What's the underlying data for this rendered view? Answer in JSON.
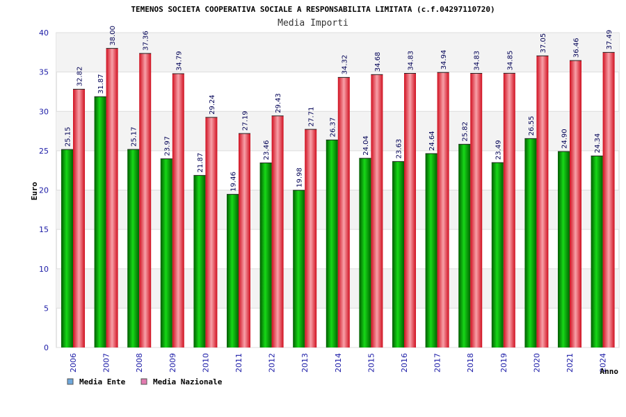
{
  "chart_data": {
    "type": "bar",
    "title": "TEMENOS SOCIETA COOPERATIVA SOCIALE A RESPONSABILITA LIMITATA (c.f.04297110720)",
    "subtitle": "Media Importi",
    "xlabel": "Anno",
    "ylabel": "Euro",
    "ylim": [
      0,
      40
    ],
    "yticks": [
      "0",
      "5",
      "10",
      "15",
      "20",
      "25",
      "30",
      "35",
      "40"
    ],
    "categories": [
      "2006",
      "2007",
      "2008",
      "2009",
      "2010",
      "2011",
      "2012",
      "2013",
      "2014",
      "2015",
      "2016",
      "2017",
      "2018",
      "2019",
      "2020",
      "2021",
      "2024"
    ],
    "series": [
      {
        "name": "Media Ente",
        "color": "#00a000",
        "legend_color": "#6fa8dc",
        "values": [
          25.15,
          31.87,
          25.17,
          23.97,
          21.87,
          19.46,
          23.46,
          19.98,
          26.37,
          24.04,
          23.63,
          24.64,
          25.82,
          23.49,
          26.55,
          24.9,
          24.34
        ],
        "labels": [
          "25.15",
          "31.87",
          "25.17",
          "23.97",
          "21.87",
          "19.46",
          "23.46",
          "19.98",
          "26.37",
          "24.04",
          "23.63",
          "24.64",
          "25.82",
          "23.49",
          "26.55",
          "24.90",
          "24.34"
        ]
      },
      {
        "name": "Media Nazionale",
        "color": "#e8202a",
        "legend_color": "#e27bb0",
        "values": [
          32.82,
          38.0,
          37.36,
          34.79,
          29.24,
          27.19,
          29.43,
          27.71,
          34.32,
          34.68,
          34.83,
          34.94,
          34.83,
          34.85,
          37.05,
          36.46,
          37.49
        ],
        "labels": [
          "32.82",
          "38.00",
          "37.36",
          "34.79",
          "29.24",
          "27.19",
          "29.43",
          "27.71",
          "34.32",
          "34.68",
          "34.83",
          "34.94",
          "34.83",
          "34.85",
          "37.05",
          "36.46",
          "37.49"
        ]
      }
    ],
    "grid": true,
    "legend": "bottom-left"
  }
}
